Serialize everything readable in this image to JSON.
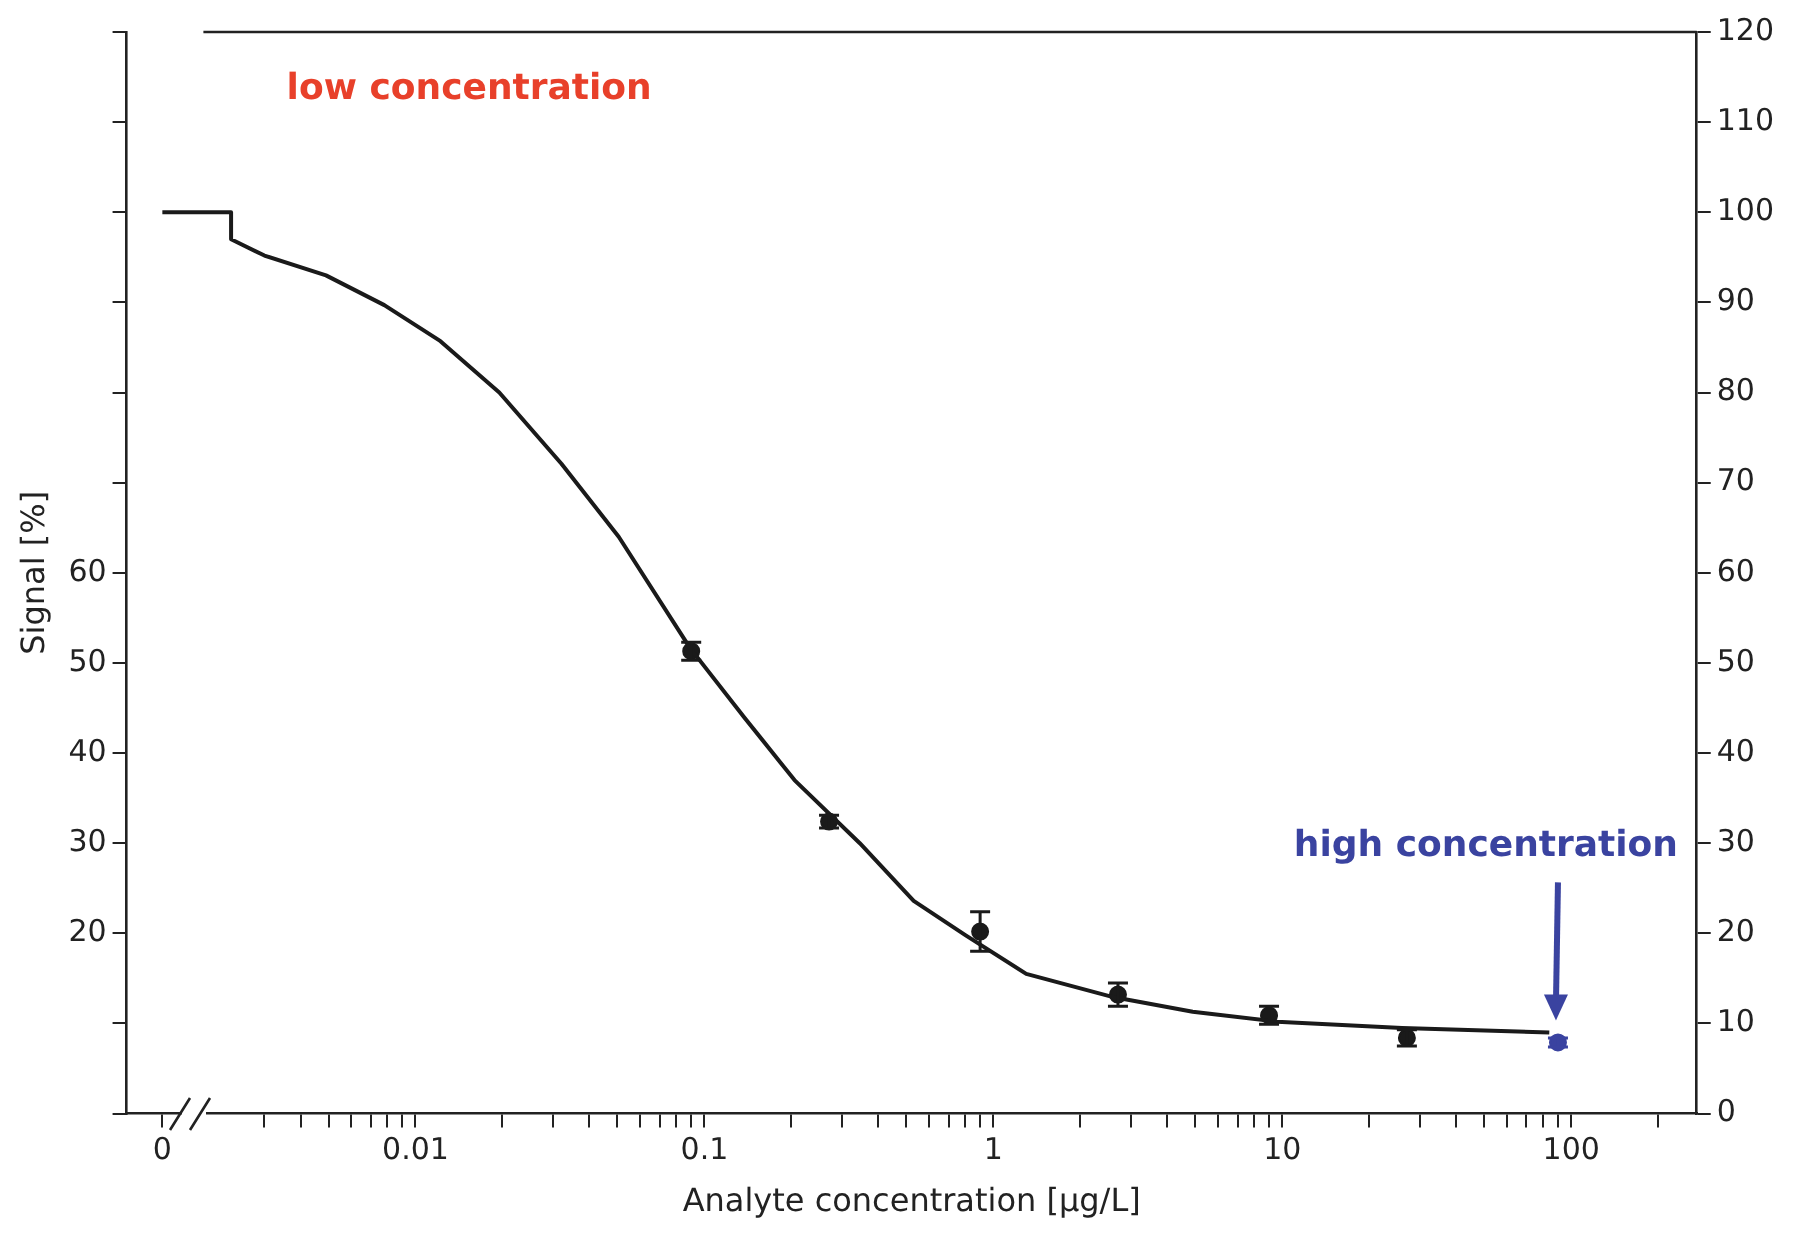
{
  "chart_data": {
    "type": "scatter",
    "xlabel": "Analyte concentration [μg/L]",
    "ylabel": "Signal [%]",
    "annotations": [
      "low concentration",
      "high concentration"
    ],
    "log": "x",
    "grid": false,
    "legend": false,
    "line_style": "solid",
    "xlim": [
      0.001,
      272
    ],
    "xticks": [
      {
        "value": 0.00133,
        "label": "0"
      },
      {
        "value": 0.003,
        "label": null
      },
      {
        "value": 0.004,
        "label": null
      },
      {
        "value": 0.005,
        "label": null
      },
      {
        "value": 0.006,
        "label": null
      },
      {
        "value": 0.007,
        "label": null
      },
      {
        "value": 0.008,
        "label": null
      },
      {
        "value": 0.009,
        "label": null
      },
      0.01,
      {
        "value": 0.02,
        "label": null
      },
      {
        "value": 0.03,
        "label": null
      },
      {
        "value": 0.04,
        "label": null
      },
      {
        "value": 0.05,
        "label": null
      },
      {
        "value": 0.06,
        "label": null
      },
      {
        "value": 0.07,
        "label": null
      },
      {
        "value": 0.08,
        "label": null
      },
      {
        "value": 0.09,
        "label": null
      },
      0.1,
      {
        "value": 0.2,
        "label": null
      },
      {
        "value": 0.3,
        "label": null
      },
      {
        "value": 0.4,
        "label": null
      },
      {
        "value": 0.5,
        "label": null
      },
      {
        "value": 0.6,
        "label": null
      },
      {
        "value": 0.7,
        "label": null
      },
      {
        "value": 0.8,
        "label": null
      },
      {
        "value": 0.9,
        "label": null
      },
      1,
      {
        "value": 2,
        "label": null
      },
      {
        "value": 3,
        "label": null
      },
      {
        "value": 4,
        "label": null
      },
      {
        "value": 5,
        "label": null
      },
      {
        "value": 6,
        "label": null
      },
      {
        "value": 7,
        "label": null
      },
      {
        "value": 8,
        "label": null
      },
      {
        "value": 9,
        "label": null
      },
      10,
      {
        "value": 20,
        "label": null
      },
      {
        "value": 30,
        "label": null
      },
      {
        "value": 40,
        "label": null
      },
      {
        "value": 50,
        "label": null
      },
      {
        "value": 60,
        "label": null
      },
      {
        "value": 70,
        "label": null
      },
      {
        "value": 80,
        "label": null
      },
      {
        "value": 90,
        "label": null
      },
      100,
      {
        "value": 200,
        "label": null
      }
    ],
    "ylim": [
      0,
      120
    ],
    "yticks": [
      {
        "value": 0,
        "label": null
      },
      {
        "value": 10,
        "label": null
      },
      20,
      30,
      40,
      50,
      60,
      {
        "value": 70,
        "label": null
      },
      {
        "value": 80,
        "label": null
      },
      {
        "value": 90,
        "label": null
      },
      {
        "value": 100,
        "label": null
      },
      {
        "value": 110,
        "label": null
      },
      {
        "value": 120,
        "label": null
      }
    ],
    "y2lim": [
      0,
      120
    ],
    "y2ticks": [
      0,
      10,
      20,
      30,
      40,
      50,
      60,
      70,
      80,
      90,
      100,
      110,
      120
    ],
    "series": [
      {
        "type": "line",
        "marker": "none",
        "color": "#1a1a1a",
        "x": [
          0.00133,
          0.0023,
          0.0023,
          0.003,
          0.0049,
          0.0078,
          0.0122,
          0.0195,
          0.032,
          0.0505,
          0.089,
          0.137,
          0.205,
          0.345,
          0.53,
          0.8,
          1.3,
          2.54,
          4.9,
          9.6,
          26,
          84
        ],
        "values": [
          100,
          100,
          97,
          95.2,
          93,
          89.7,
          85.7,
          80,
          72.1,
          64,
          51.7,
          44,
          37,
          30,
          23.6,
          19.8,
          15.5,
          13,
          11.3,
          10.2,
          9.5,
          9
        ]
      },
      {
        "marker": "circle",
        "color": "#1a1a1a",
        "x": [
          0.09,
          0.27,
          0.9,
          2.7,
          9,
          27
        ],
        "values": [
          51.3,
          32.4,
          20.2,
          13.2,
          10.9,
          8.4
        ],
        "errors": [
          1,
          0.7,
          2.2,
          1.3,
          1,
          0.9
        ]
      },
      {
        "marker": "circle",
        "color": "#3a43a0",
        "x": [
          90
        ],
        "values": [
          7.9
        ],
        "errors": [
          0.5
        ]
      }
    ]
  }
}
